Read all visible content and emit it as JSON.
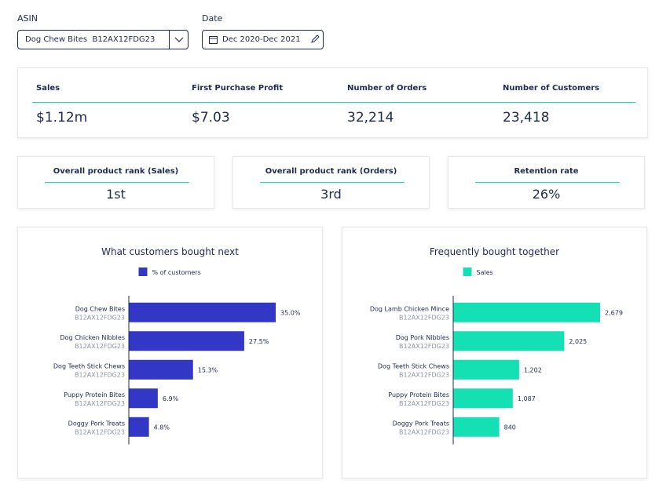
{
  "filters": {
    "asin": {
      "label": "ASIN",
      "value": "Dog Chew Bites  B12AX12FDG23"
    },
    "date": {
      "label": "Date",
      "value": "Dec 2020-Dec 2021"
    }
  },
  "kpis": [
    {
      "label": "Sales",
      "value": "$1.12m"
    },
    {
      "label": "First Purchase Profit",
      "value": "$7.03"
    },
    {
      "label": "Number of Orders",
      "value": "32,214"
    },
    {
      "label": "Number of Customers",
      "value": "23,418"
    }
  ],
  "ranks": [
    {
      "label": "Overall product rank (Sales)",
      "value": "1st"
    },
    {
      "label": "Overall product rank (Orders)",
      "value": "3rd"
    },
    {
      "label": "Retention rate",
      "value": "26%"
    }
  ],
  "chart_data": [
    {
      "type": "bar",
      "orientation": "horizontal",
      "title": "What customers bought next",
      "categories": [
        "Dog Chew Bites",
        "Dog Chicken Nibbles",
        "Dog Teeth Stick Chews",
        "Puppy Protein Bites",
        "Doggy Pork Treats"
      ],
      "category_codes": [
        "B12AX12FDG23",
        "B12AX12FDG23",
        "B12AX12FDG23",
        "B12AX12FDG23",
        "B12AX12FDG23"
      ],
      "series": [
        {
          "name": "% of customers",
          "color": "#3237c6",
          "values": [
            35.0,
            27.5,
            15.3,
            6.9,
            4.8
          ],
          "value_labels": [
            "35.0%",
            "27.5%",
            "15.3%",
            "6.9%",
            "4.8%"
          ]
        }
      ]
    },
    {
      "type": "bar",
      "orientation": "horizontal",
      "title": "Frequently bought together",
      "categories": [
        "Dog Lamb Chicken Mince",
        "Dog Pork Nibbles",
        "Dog Teeth Stick Chews",
        "Puppy Protein Bites",
        "Doggy Pork Treats"
      ],
      "category_codes": [
        "B12AX12FDG23",
        "B12AX12FDG23",
        "B12AX12FDG23",
        "B12AX12FDG23",
        "B12AX12FDG23"
      ],
      "series": [
        {
          "name": "Sales",
          "color": "#14e0b4",
          "values": [
            2679,
            2025,
            1202,
            1087,
            840
          ],
          "value_labels": [
            "2,679",
            "2,025",
            "1,202",
            "1,087",
            "840"
          ]
        }
      ]
    }
  ]
}
